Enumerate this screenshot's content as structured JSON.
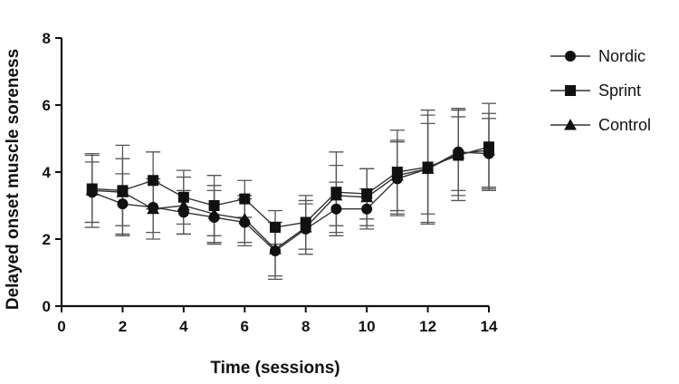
{
  "chart_data": {
    "type": "line",
    "xlabel": "Time (sessions)",
    "ylabel": "Delayed onset muscle soreness",
    "xlim": [
      0,
      14
    ],
    "ylim": [
      0,
      8
    ],
    "x_ticks": [
      0,
      2,
      4,
      6,
      8,
      10,
      12,
      14
    ],
    "y_ticks": [
      0,
      2,
      4,
      6,
      8
    ],
    "grid": false,
    "legend_position": "right",
    "x": [
      1,
      2,
      3,
      4,
      5,
      6,
      7,
      8,
      9,
      10,
      11,
      12,
      13,
      14
    ],
    "series": [
      {
        "name": "Nordic",
        "marker": "circle",
        "values": [
          3.4,
          3.05,
          2.95,
          2.8,
          2.65,
          2.5,
          1.65,
          2.3,
          2.9,
          2.9,
          3.8,
          4.1,
          4.6,
          4.55
        ],
        "error": [
          0.9,
          0.9,
          0.75,
          0.65,
          0.8,
          0.7,
          0.85,
          0.75,
          0.8,
          0.6,
          1.1,
          1.6,
          1.3,
          1.05
        ]
      },
      {
        "name": "Sprint",
        "marker": "square",
        "values": [
          3.5,
          3.45,
          3.75,
          3.25,
          3.0,
          3.2,
          2.35,
          2.5,
          3.4,
          3.35,
          4.0,
          4.15,
          4.5,
          4.75
        ],
        "error": [
          1.0,
          1.35,
          0.85,
          0.8,
          0.9,
          0.55,
          0.5,
          0.8,
          1.2,
          0.75,
          1.25,
          1.7,
          1.35,
          1.3
        ]
      },
      {
        "name": "Control",
        "marker": "triangle",
        "values": [
          3.45,
          3.4,
          2.9,
          3.0,
          2.75,
          2.6,
          1.7,
          2.35,
          3.3,
          3.25,
          3.9,
          4.1,
          4.55,
          4.65
        ],
        "error": [
          1.1,
          1.0,
          0.9,
          0.85,
          0.85,
          0.7,
          0.8,
          0.8,
          0.9,
          0.85,
          1.05,
          1.35,
          1.1,
          1.1
        ]
      }
    ]
  }
}
